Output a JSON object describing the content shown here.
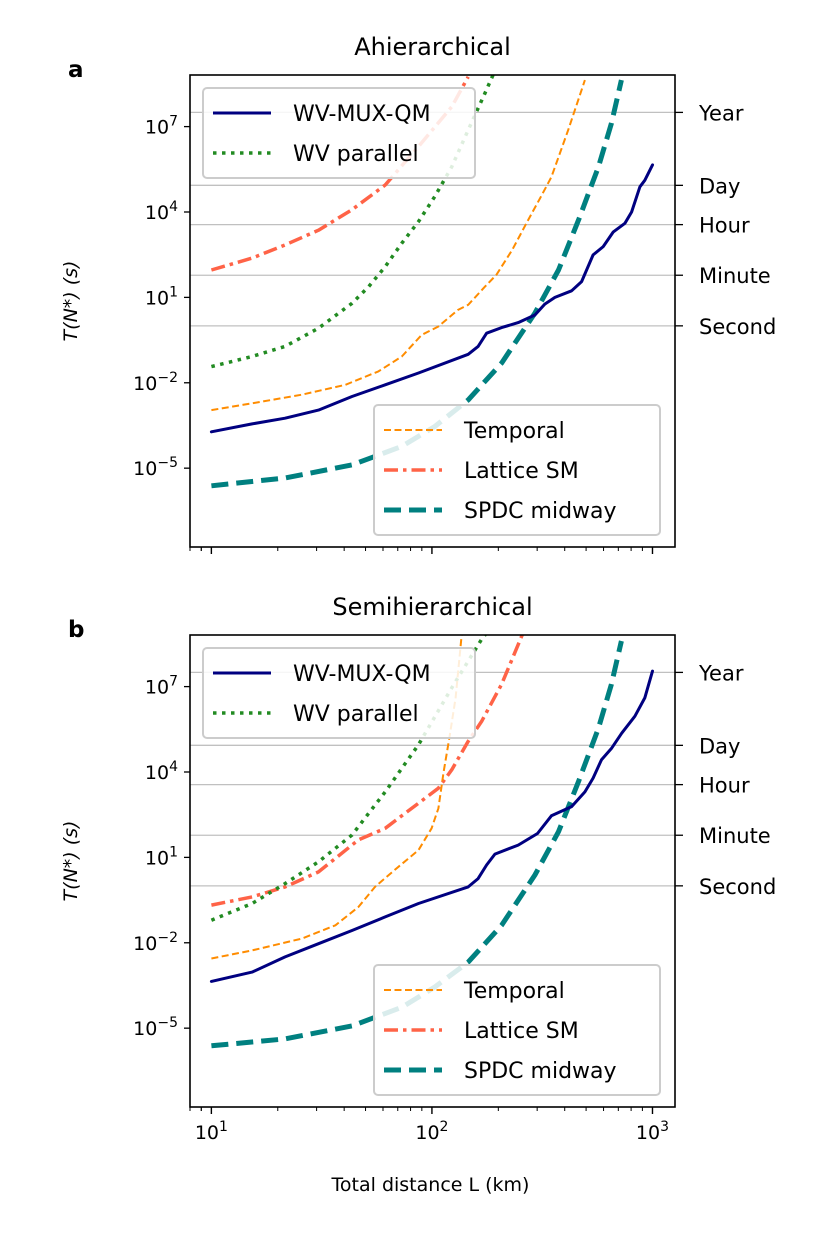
{
  "chart_data": [
    {
      "type": "line",
      "panel_label": "a",
      "title": "Ahierarchical",
      "ylabel": "T(N*) (s)",
      "xlabel": "",
      "xscale": "log",
      "yscale": "log",
      "xlim": [
        8,
        1265
      ],
      "ylim": [
        1.7e-08,
        650000000.0
      ],
      "x_ticks": [],
      "y_ticks": [
        {
          "value": 10000000.0,
          "base": "10",
          "exp": "7"
        },
        {
          "value": 10000.0,
          "base": "10",
          "exp": "4"
        },
        {
          "value": 10,
          "base": "10",
          "exp": "1"
        },
        {
          "value": 0.01,
          "base": "10",
          "exp": "−2"
        },
        {
          "value": 1e-05,
          "base": "10",
          "exp": "−5"
        }
      ],
      "reference_lines": [
        {
          "label": "Year",
          "value": 31536000
        },
        {
          "label": "Day",
          "value": 86400
        },
        {
          "label": "Hour",
          "value": 3600
        },
        {
          "label": "Minute",
          "value": 60
        },
        {
          "label": "Second",
          "value": 1
        }
      ],
      "grid": "horizontal reference lines only",
      "legends": [
        {
          "placement": "upper-left",
          "entries": [
            "WV-MUX-QM",
            "WV parallel"
          ]
        },
        {
          "placement": "lower-right",
          "entries": [
            "Temporal",
            "Lattice SM",
            "SPDC midway"
          ]
        }
      ],
      "series": [
        {
          "name": "WV-MUX-QM",
          "color": "#000080",
          "style": "solid",
          "points": [
            [
              10,
              0.00019
            ],
            [
              15.3,
              0.00036
            ],
            [
              21.6,
              0.00057
            ],
            [
              30.6,
              0.0011
            ],
            [
              43.4,
              0.0033
            ],
            [
              61.4,
              0.0085
            ],
            [
              86.9,
              0.022
            ],
            [
              146,
              0.1
            ],
            [
              162,
              0.19
            ],
            [
              177,
              0.55
            ],
            [
              207,
              0.87
            ],
            [
              246,
              1.3
            ],
            [
              293,
              2.4
            ],
            [
              325,
              5.8
            ],
            [
              361,
              10
            ],
            [
              430,
              17
            ],
            [
              477,
              36
            ],
            [
              538,
              310
            ],
            [
              598,
              610
            ],
            [
              664,
              2000
            ],
            [
              750,
              4000
            ],
            [
              804,
              10000.0
            ],
            [
              877,
              77000.0
            ],
            [
              923,
              130000.0
            ],
            [
              1000,
              450000.0
            ]
          ]
        },
        {
          "name": "WV parallel",
          "color": "#228b22",
          "style": "dotted",
          "points": [
            [
              10,
              0.037
            ],
            [
              15.3,
              0.084
            ],
            [
              21.6,
              0.19
            ],
            [
              30.6,
              0.83
            ],
            [
              43.4,
              6.2
            ],
            [
              51.7,
              24
            ],
            [
              61.4,
              120
            ],
            [
              73,
              800
            ],
            [
              86.9,
              4600
            ],
            [
              103,
              35000.0
            ],
            [
              123,
              390000.0
            ],
            [
              146,
              7600000.0
            ],
            [
              174,
              150000000.0
            ],
            [
              196,
              1200000000.0
            ]
          ]
        },
        {
          "name": "Temporal",
          "color": "#ff8c00",
          "style": "dashed",
          "points": [
            [
              10,
              0.0011
            ],
            [
              15.3,
              0.0019
            ],
            [
              25.7,
              0.0038
            ],
            [
              40.5,
              0.0085
            ],
            [
              57.2,
              0.025
            ],
            [
              73,
              0.084
            ],
            [
              89.9,
              0.48
            ],
            [
              107,
              0.95
            ],
            [
              131,
              3.6
            ],
            [
              146,
              5.5
            ],
            [
              174,
              24
            ],
            [
              196,
              62
            ],
            [
              231,
              460
            ],
            [
              273,
              5200
            ],
            [
              309,
              30000.0
            ],
            [
              348,
              170000.0
            ],
            [
              415,
              7600000.0
            ],
            [
              494,
              430000000.0
            ]
          ]
        },
        {
          "name": "Lattice SM",
          "color": "#ff6347",
          "style": "dashdot",
          "points": [
            [
              10,
              92
            ],
            [
              15.3,
              240
            ],
            [
              21.6,
              700
            ],
            [
              30.6,
              2300
            ],
            [
              43.4,
              12000.0
            ],
            [
              61.4,
              89000.0
            ],
            [
              86.9,
              2000000.0
            ],
            [
              123,
              50000000.0
            ],
            [
              146,
              560000000.0
            ]
          ]
        },
        {
          "name": "SPDC midway",
          "color": "#008080",
          "style": "long-dashed",
          "points": [
            [
              10,
              2.4e-06
            ],
            [
              21.6,
              4.5e-06
            ],
            [
              43.4,
              1.3e-05
            ],
            [
              73,
              5.8e-05
            ],
            [
              103,
              0.00029
            ],
            [
              146,
              0.0025
            ],
            [
              207,
              0.049
            ],
            [
              293,
              2.8
            ],
            [
              375,
              92
            ],
            [
              462,
              5200
            ],
            [
              569,
              390000.0
            ],
            [
              651,
              13000000.0
            ],
            [
              723,
              430000000.0
            ]
          ]
        }
      ]
    },
    {
      "type": "line",
      "panel_label": "b",
      "title": "Semihierarchical",
      "ylabel": "T(N*) (s)",
      "xlabel": "Total distance L (km)",
      "xscale": "log",
      "yscale": "log",
      "xlim": [
        8,
        1265
      ],
      "ylim": [
        1.7e-08,
        650000000.0
      ],
      "x_ticks": [
        {
          "value": 10,
          "base": "10",
          "exp": "1"
        },
        {
          "value": 100,
          "base": "10",
          "exp": "2"
        },
        {
          "value": 1000,
          "base": "10",
          "exp": "3"
        }
      ],
      "y_ticks": [
        {
          "value": 10000000.0,
          "base": "10",
          "exp": "7"
        },
        {
          "value": 10000.0,
          "base": "10",
          "exp": "4"
        },
        {
          "value": 10,
          "base": "10",
          "exp": "1"
        },
        {
          "value": 0.01,
          "base": "10",
          "exp": "−2"
        },
        {
          "value": 1e-05,
          "base": "10",
          "exp": "−5"
        }
      ],
      "reference_lines": [
        {
          "label": "Year",
          "value": 31536000
        },
        {
          "label": "Day",
          "value": 86400
        },
        {
          "label": "Hour",
          "value": 3600
        },
        {
          "label": "Minute",
          "value": 60
        },
        {
          "label": "Second",
          "value": 1
        }
      ],
      "grid": "horizontal reference lines only",
      "legends": [
        {
          "placement": "upper-left",
          "entries": [
            "WV-MUX-QM",
            "WV parallel"
          ]
        },
        {
          "placement": "lower-right",
          "entries": [
            "Temporal",
            "Lattice SM",
            "SPDC midway"
          ]
        }
      ],
      "series": [
        {
          "name": "WV-MUX-QM",
          "color": "#000080",
          "style": "solid",
          "points": [
            [
              10,
              0.00044
            ],
            [
              15.3,
              0.00093
            ],
            [
              21.6,
              0.0032
            ],
            [
              30.6,
              0.0093
            ],
            [
              43.4,
              0.027
            ],
            [
              61.4,
              0.081
            ],
            [
              86.9,
              0.24
            ],
            [
              146,
              0.92
            ],
            [
              162,
              1.8
            ],
            [
              177,
              5.4
            ],
            [
              193,
              13
            ],
            [
              246,
              27
            ],
            [
              301,
              69
            ],
            [
              348,
              290
            ],
            [
              430,
              610
            ],
            [
              494,
              2000
            ],
            [
              538,
              6100
            ],
            [
              587,
              27000.0
            ],
            [
              653,
              69000.0
            ],
            [
              725,
              230000.0
            ],
            [
              832,
              910000.0
            ],
            [
              923,
              4000000.0
            ],
            [
              1000,
              35000000.0
            ]
          ]
        },
        {
          "name": "WV parallel",
          "color": "#228b22",
          "style": "dotted",
          "points": [
            [
              10,
              0.062
            ],
            [
              15.3,
              0.24
            ],
            [
              21.6,
              1.2
            ],
            [
              30.6,
              7.0
            ],
            [
              43.4,
              61
            ],
            [
              61.4,
              2000
            ],
            [
              86.9,
              91000.0
            ],
            [
              123,
              9100000.0
            ],
            [
              168,
              460000000.0
            ],
            [
              185,
              1200000000.0
            ]
          ]
        },
        {
          "name": "Temporal",
          "color": "#ff8c00",
          "style": "dashed",
          "points": [
            [
              10,
              0.0028
            ],
            [
              15.3,
              0.0054
            ],
            [
              25.7,
              0.014
            ],
            [
              36.5,
              0.041
            ],
            [
              46.4,
              0.18
            ],
            [
              55.2,
              0.92
            ],
            [
              67.7,
              3.6
            ],
            [
              86.9,
              18
            ],
            [
              99.7,
              105
            ],
            [
              107,
              530
            ],
            [
              113,
              10000.0
            ],
            [
              120,
              160000.0
            ],
            [
              128,
              4000000.0
            ],
            [
              136,
              520000000.0
            ],
            [
              138,
              1200000000.0
            ]
          ]
        },
        {
          "name": "Lattice SM",
          "color": "#ff6347",
          "style": "dashdot",
          "points": [
            [
              10,
              0.21
            ],
            [
              15.3,
              0.41
            ],
            [
              21.6,
              0.92
            ],
            [
              30.6,
              3.1
            ],
            [
              46.4,
              41
            ],
            [
              61.4,
              105
            ],
            [
              86.9,
              800
            ],
            [
              107,
              2700
            ],
            [
              123,
              12000.0
            ],
            [
              146,
              120000.0
            ],
            [
              168,
              600000.0
            ],
            [
              207,
              12000000.0
            ],
            [
              246,
              300000000.0
            ],
            [
              265,
              1200000000.0
            ]
          ]
        },
        {
          "name": "SPDC midway",
          "color": "#008080",
          "style": "long-dashed",
          "points": [
            [
              10,
              2.4e-06
            ],
            [
              21.6,
              4.2e-06
            ],
            [
              43.4,
              1.2e-05
            ],
            [
              73,
              5.4e-05
            ],
            [
              103,
              0.00028
            ],
            [
              146,
              0.0021
            ],
            [
              207,
              0.041
            ],
            [
              293,
              2.4
            ],
            [
              375,
              80
            ],
            [
              462,
              4600
            ],
            [
              569,
              350000.0
            ],
            [
              651,
              12000000.0
            ],
            [
              723,
              400000000.0
            ]
          ]
        }
      ]
    }
  ]
}
